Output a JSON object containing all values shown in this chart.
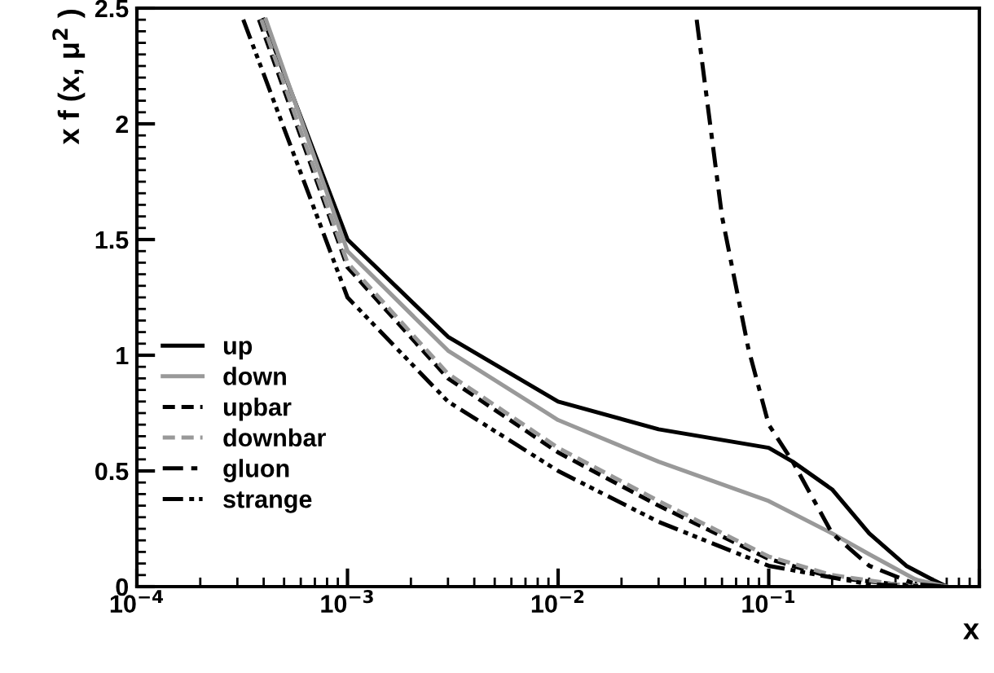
{
  "chart_data": {
    "type": "line",
    "xlabel": "x",
    "ylabel": "x f (x, μ$^{2}$ )",
    "log": "x",
    "xlim": [
      0.0001,
      1
    ],
    "ylim": [
      0,
      2.5
    ],
    "xticks": [
      {
        "value": 0.0001,
        "label": "10$^{−4}$"
      },
      {
        "value": 0.001,
        "label": "10$^{−3}$"
      },
      {
        "value": 0.01,
        "label": "10$^{−2}$"
      },
      {
        "value": 0.1,
        "label": "10$^{−1}$"
      },
      {
        "value": 1,
        "label": null
      }
    ],
    "yticks": [
      0,
      0.5,
      1,
      1.5,
      2,
      2.5
    ],
    "grid": false,
    "legend": "left",
    "series": [
      {
        "name": "up",
        "color": "#000000",
        "line_style": "solid",
        "x": [
          0.0004,
          0.001,
          0.003,
          0.01,
          0.03,
          0.1,
          0.13,
          0.2,
          0.3,
          0.45,
          0.6,
          0.7
        ],
        "values": [
          2.45,
          1.5,
          1.08,
          0.8,
          0.68,
          0.6,
          0.54,
          0.42,
          0.23,
          0.09,
          0.03,
          0
        ]
      },
      {
        "name": "down",
        "color": "#999999",
        "line_style": "solid",
        "x": [
          0.00041,
          0.001,
          0.003,
          0.01,
          0.03,
          0.1,
          0.2,
          0.3,
          0.5,
          0.7
        ],
        "values": [
          2.45,
          1.45,
          1.02,
          0.72,
          0.54,
          0.37,
          0.23,
          0.14,
          0.03,
          0
        ]
      },
      {
        "name": "upbar",
        "color": "#000000",
        "line_style": "dashed",
        "x": [
          0.00038,
          0.001,
          0.003,
          0.01,
          0.03,
          0.1,
          0.2,
          0.4,
          0.7
        ],
        "values": [
          2.45,
          1.38,
          0.9,
          0.58,
          0.35,
          0.12,
          0.04,
          0.01,
          0
        ]
      },
      {
        "name": "downbar",
        "color": "#999999",
        "line_style": "dashed",
        "x": [
          0.00039,
          0.001,
          0.003,
          0.01,
          0.03,
          0.1,
          0.2,
          0.4,
          0.7
        ],
        "values": [
          2.45,
          1.4,
          0.92,
          0.6,
          0.37,
          0.13,
          0.05,
          0.01,
          0
        ]
      },
      {
        "name": "gluon",
        "color": "#000000",
        "line_style": "dashdot",
        "x": [
          0.0455,
          0.06,
          0.08,
          0.1,
          0.13,
          0.2,
          0.3,
          0.5,
          0.7
        ],
        "values": [
          2.45,
          1.6,
          1.03,
          0.7,
          0.54,
          0.23,
          0.09,
          0.01,
          0
        ]
      },
      {
        "name": "strange",
        "color": "#000000",
        "line_style": "dashdotdot",
        "x": [
          0.00032,
          0.001,
          0.003,
          0.01,
          0.03,
          0.1,
          0.3,
          0.6
        ],
        "values": [
          2.45,
          1.25,
          0.8,
          0.5,
          0.28,
          0.09,
          0.01,
          0
        ]
      }
    ]
  }
}
